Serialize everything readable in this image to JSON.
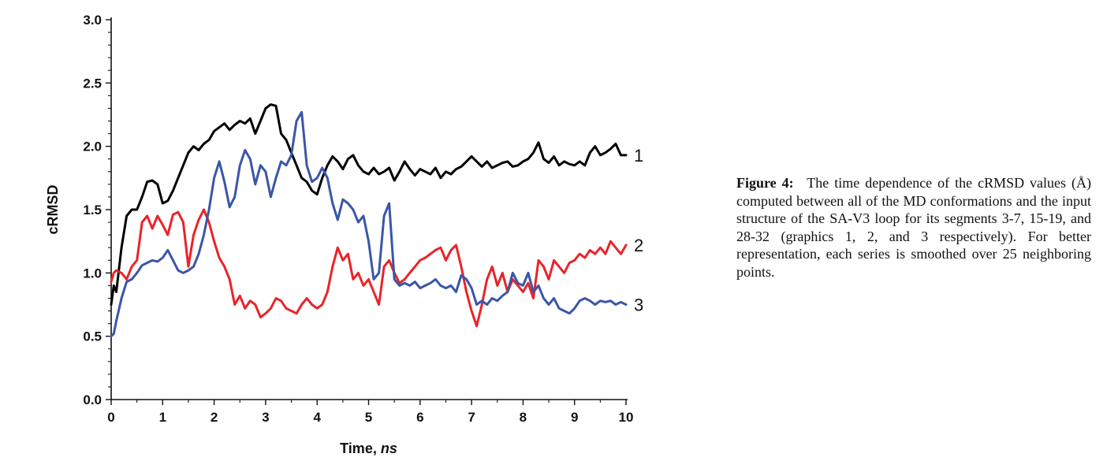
{
  "chart_data": {
    "type": "line",
    "title": "",
    "xlabel": "Time, ",
    "xlabel_italic": "ns",
    "ylabel": "cRMSD",
    "xlim": [
      0,
      10
    ],
    "ylim": [
      0,
      3
    ],
    "x_ticks": [
      "0",
      "1",
      "2",
      "3",
      "4",
      "5",
      "6",
      "7",
      "8",
      "9",
      "10"
    ],
    "y_ticks": [
      "0.0",
      "0.5",
      "1.0",
      "1.5",
      "2.0",
      "2.5",
      "3.0"
    ],
    "grid": false,
    "series": [
      {
        "name": "1",
        "color": "#000000",
        "x": [
          0,
          0.05,
          0.1,
          0.2,
          0.3,
          0.4,
          0.5,
          0.6,
          0.7,
          0.8,
          0.9,
          1.0,
          1.1,
          1.2,
          1.3,
          1.4,
          1.5,
          1.6,
          1.7,
          1.8,
          1.9,
          2.0,
          2.1,
          2.2,
          2.3,
          2.4,
          2.5,
          2.6,
          2.7,
          2.8,
          2.9,
          3.0,
          3.1,
          3.2,
          3.3,
          3.4,
          3.5,
          3.6,
          3.7,
          3.8,
          3.9,
          4.0,
          4.1,
          4.2,
          4.3,
          4.4,
          4.5,
          4.6,
          4.7,
          4.8,
          4.9,
          5.0,
          5.1,
          5.2,
          5.3,
          5.4,
          5.5,
          5.6,
          5.7,
          5.8,
          5.9,
          6.0,
          6.1,
          6.2,
          6.3,
          6.4,
          6.5,
          6.6,
          6.7,
          6.8,
          6.9,
          7.0,
          7.1,
          7.2,
          7.3,
          7.4,
          7.5,
          7.6,
          7.7,
          7.8,
          7.9,
          8.0,
          8.1,
          8.2,
          8.3,
          8.4,
          8.5,
          8.6,
          8.7,
          8.8,
          8.9,
          9.0,
          9.1,
          9.2,
          9.3,
          9.4,
          9.5,
          9.6,
          9.7,
          9.8,
          9.9,
          10.0
        ],
        "values": [
          0.75,
          0.9,
          0.85,
          1.2,
          1.45,
          1.5,
          1.5,
          1.6,
          1.72,
          1.73,
          1.7,
          1.55,
          1.57,
          1.65,
          1.75,
          1.85,
          1.95,
          2.0,
          1.97,
          2.02,
          2.05,
          2.12,
          2.15,
          2.18,
          2.13,
          2.17,
          2.2,
          2.18,
          2.22,
          2.1,
          2.2,
          2.3,
          2.33,
          2.32,
          2.1,
          2.05,
          1.95,
          1.85,
          1.75,
          1.72,
          1.65,
          1.62,
          1.75,
          1.85,
          1.92,
          1.88,
          1.82,
          1.9,
          1.93,
          1.85,
          1.8,
          1.78,
          1.83,
          1.78,
          1.8,
          1.83,
          1.73,
          1.8,
          1.88,
          1.82,
          1.77,
          1.82,
          1.8,
          1.78,
          1.83,
          1.75,
          1.8,
          1.78,
          1.82,
          1.84,
          1.88,
          1.92,
          1.88,
          1.84,
          1.88,
          1.83,
          1.85,
          1.87,
          1.88,
          1.84,
          1.85,
          1.88,
          1.9,
          1.95,
          2.03,
          1.9,
          1.87,
          1.92,
          1.85,
          1.88,
          1.86,
          1.85,
          1.88,
          1.85,
          1.95,
          2.0,
          1.93,
          1.95,
          1.98,
          2.02,
          1.93,
          1.93
        ]
      },
      {
        "name": "2",
        "color": "#e8242a",
        "x": [
          0,
          0.05,
          0.1,
          0.2,
          0.3,
          0.4,
          0.5,
          0.6,
          0.7,
          0.8,
          0.9,
          1.0,
          1.1,
          1.2,
          1.3,
          1.4,
          1.5,
          1.6,
          1.7,
          1.8,
          1.9,
          2.0,
          2.1,
          2.2,
          2.3,
          2.4,
          2.5,
          2.6,
          2.7,
          2.8,
          2.9,
          3.0,
          3.1,
          3.2,
          3.3,
          3.4,
          3.5,
          3.6,
          3.7,
          3.8,
          3.9,
          4.0,
          4.1,
          4.2,
          4.3,
          4.4,
          4.5,
          4.6,
          4.7,
          4.8,
          4.9,
          5.0,
          5.1,
          5.2,
          5.3,
          5.4,
          5.5,
          5.6,
          5.7,
          5.8,
          5.9,
          6.0,
          6.1,
          6.2,
          6.3,
          6.4,
          6.5,
          6.6,
          6.7,
          6.8,
          6.9,
          7.0,
          7.1,
          7.2,
          7.3,
          7.4,
          7.5,
          7.6,
          7.7,
          7.8,
          7.9,
          8.0,
          8.1,
          8.2,
          8.3,
          8.4,
          8.5,
          8.6,
          8.7,
          8.8,
          8.9,
          9.0,
          9.1,
          9.2,
          9.3,
          9.4,
          9.5,
          9.6,
          9.7,
          9.8,
          9.9,
          10.0
        ],
        "values": [
          0.93,
          1.0,
          1.02,
          1.0,
          0.95,
          1.05,
          1.1,
          1.4,
          1.45,
          1.35,
          1.45,
          1.38,
          1.3,
          1.46,
          1.48,
          1.4,
          1.05,
          1.3,
          1.42,
          1.5,
          1.4,
          1.25,
          1.12,
          1.05,
          0.95,
          0.75,
          0.82,
          0.72,
          0.78,
          0.75,
          0.65,
          0.68,
          0.72,
          0.8,
          0.78,
          0.72,
          0.7,
          0.68,
          0.75,
          0.8,
          0.75,
          0.72,
          0.75,
          0.85,
          1.05,
          1.2,
          1.1,
          1.15,
          0.95,
          1.0,
          0.9,
          0.95,
          0.85,
          0.75,
          1.05,
          1.1,
          1.0,
          0.92,
          0.95,
          1.0,
          1.05,
          1.1,
          1.12,
          1.15,
          1.18,
          1.2,
          1.1,
          1.18,
          1.22,
          1.05,
          0.85,
          0.7,
          0.58,
          0.75,
          0.95,
          1.05,
          0.9,
          1.0,
          0.85,
          0.95,
          0.9,
          0.85,
          0.92,
          0.8,
          1.1,
          1.05,
          0.95,
          1.1,
          1.05,
          1.0,
          1.08,
          1.1,
          1.15,
          1.12,
          1.18,
          1.15,
          1.2,
          1.15,
          1.25,
          1.2,
          1.15,
          1.22
        ]
      },
      {
        "name": "3",
        "color": "#3a56a8",
        "x": [
          0,
          0.05,
          0.1,
          0.2,
          0.3,
          0.4,
          0.5,
          0.6,
          0.7,
          0.8,
          0.9,
          1.0,
          1.1,
          1.2,
          1.3,
          1.4,
          1.5,
          1.6,
          1.7,
          1.8,
          1.9,
          2.0,
          2.1,
          2.2,
          2.3,
          2.4,
          2.5,
          2.6,
          2.7,
          2.8,
          2.9,
          3.0,
          3.1,
          3.2,
          3.3,
          3.4,
          3.5,
          3.6,
          3.7,
          3.8,
          3.9,
          4.0,
          4.1,
          4.2,
          4.3,
          4.4,
          4.5,
          4.6,
          4.7,
          4.8,
          4.9,
          5.0,
          5.1,
          5.2,
          5.3,
          5.4,
          5.5,
          5.6,
          5.7,
          5.8,
          5.9,
          6.0,
          6.1,
          6.2,
          6.3,
          6.4,
          6.5,
          6.6,
          6.7,
          6.8,
          6.9,
          7.0,
          7.1,
          7.2,
          7.3,
          7.4,
          7.5,
          7.6,
          7.7,
          7.8,
          7.9,
          8.0,
          8.1,
          8.2,
          8.3,
          8.4,
          8.5,
          8.6,
          8.7,
          8.8,
          8.9,
          9.0,
          9.1,
          9.2,
          9.3,
          9.4,
          9.5,
          9.6,
          9.7,
          9.8,
          9.9,
          10.0
        ],
        "values": [
          0.5,
          0.52,
          0.62,
          0.8,
          0.93,
          0.95,
          1.0,
          1.06,
          1.08,
          1.1,
          1.09,
          1.12,
          1.18,
          1.1,
          1.02,
          1.0,
          1.02,
          1.05,
          1.15,
          1.3,
          1.5,
          1.75,
          1.88,
          1.72,
          1.52,
          1.6,
          1.85,
          1.97,
          1.9,
          1.7,
          1.85,
          1.8,
          1.6,
          1.75,
          1.88,
          1.85,
          1.93,
          2.2,
          2.27,
          1.85,
          1.72,
          1.75,
          1.83,
          1.75,
          1.55,
          1.42,
          1.58,
          1.55,
          1.5,
          1.4,
          1.45,
          1.25,
          0.95,
          1.0,
          1.45,
          1.55,
          0.95,
          0.9,
          0.92,
          0.9,
          0.93,
          0.88,
          0.9,
          0.92,
          0.95,
          0.9,
          0.88,
          0.9,
          0.85,
          0.98,
          0.95,
          0.88,
          0.75,
          0.78,
          0.75,
          0.8,
          0.78,
          0.82,
          0.85,
          1.0,
          0.92,
          0.9,
          1.0,
          0.85,
          0.9,
          0.8,
          0.75,
          0.8,
          0.72,
          0.7,
          0.68,
          0.72,
          0.78,
          0.8,
          0.78,
          0.75,
          0.78,
          0.77,
          0.78,
          0.75,
          0.77,
          0.75
        ]
      }
    ]
  },
  "caption": {
    "title": "Figure 4:",
    "text": "The time dependence of the cRMSD values (Å) computed between all of the MD conformations and the input structure of the SA-V3 loop for its segments 3-7, 15-19, and 28-32 (graphics 1, 2, and 3 respectively). For better representation, each series is smoothed over 25 neighboring points."
  }
}
